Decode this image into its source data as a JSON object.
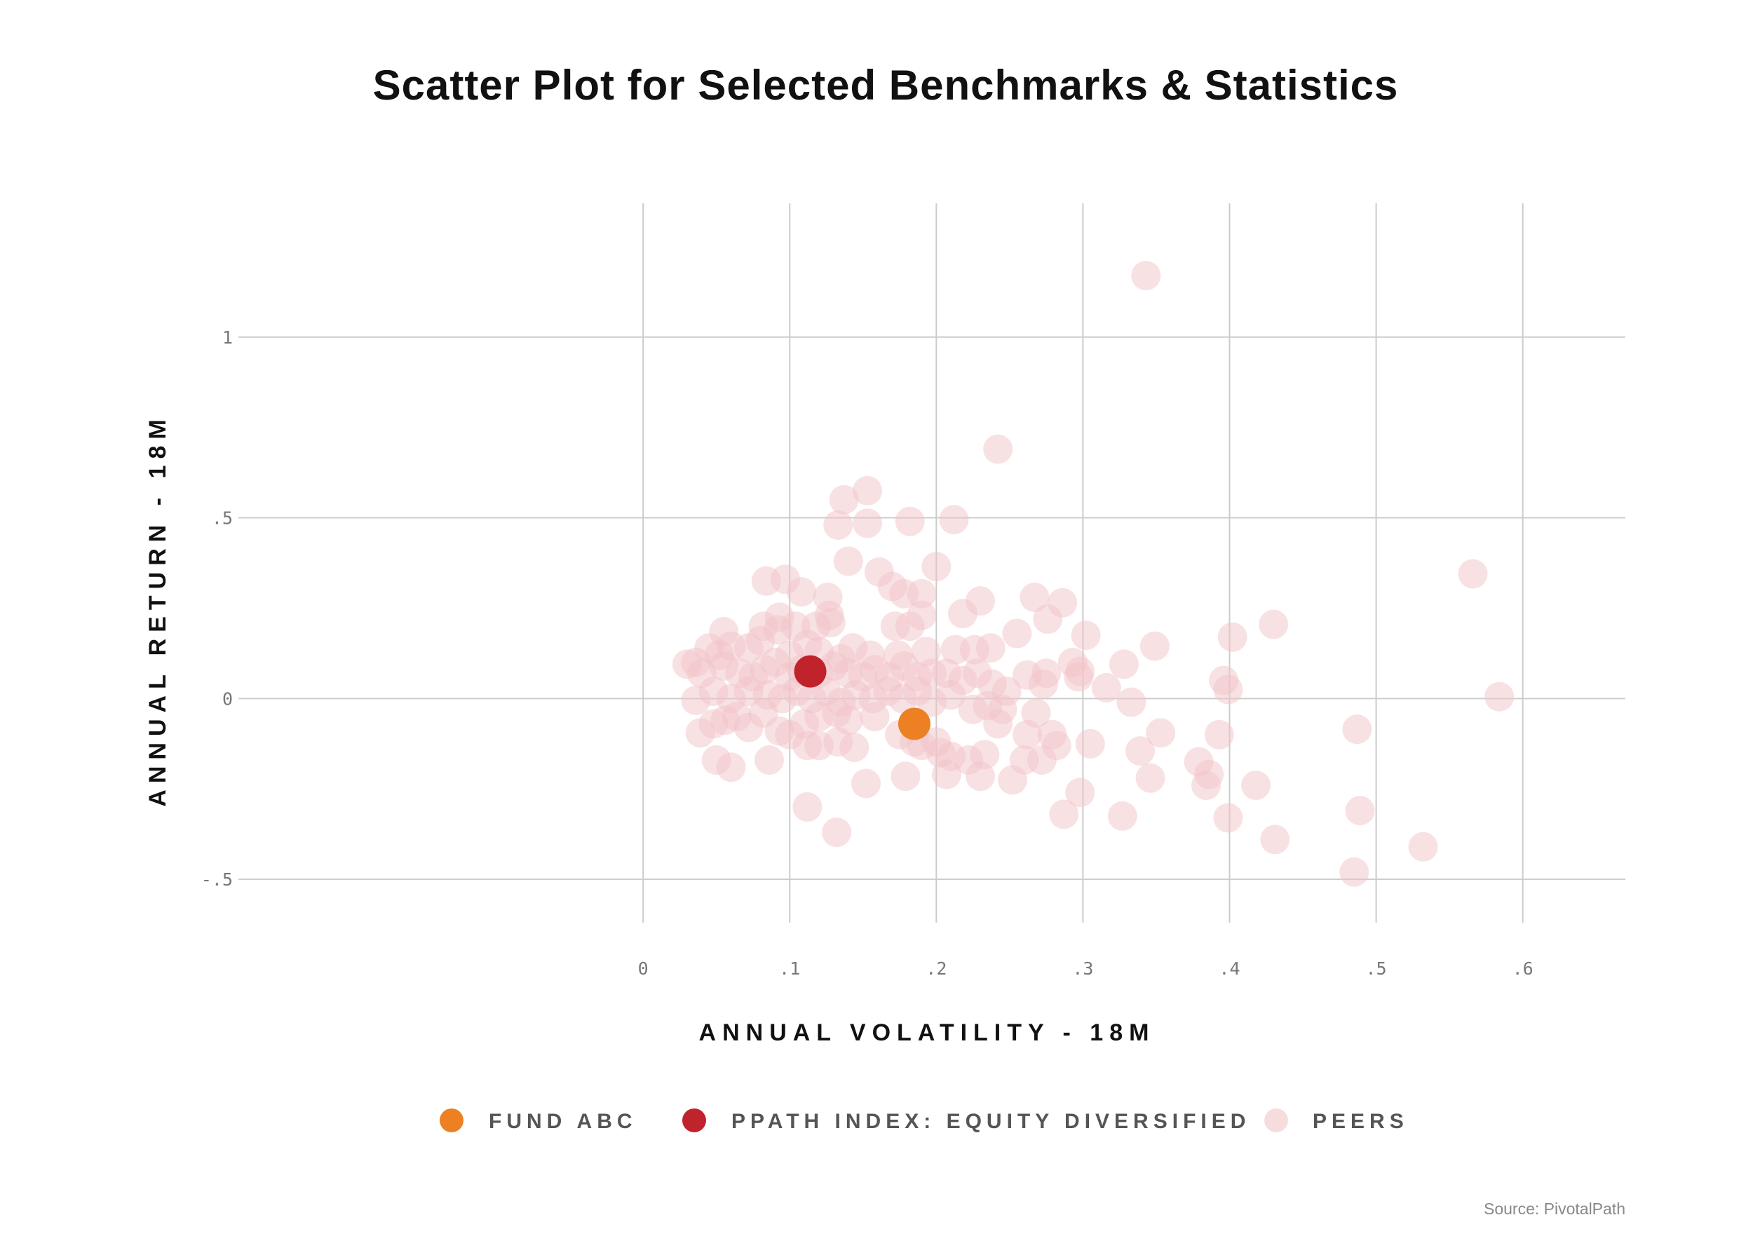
{
  "chart_data": {
    "type": "scatter",
    "title": "Scatter Plot for Selected Benchmarks & Statistics",
    "xlabel": "ANNUAL VOLATILITY - 18M",
    "ylabel": "ANNUAL RETURN - 18M",
    "xlim": [
      -0.2,
      0.67
    ],
    "ylim": [
      -0.62,
      1.37
    ],
    "grid": true,
    "legend_position": "bottom",
    "x_ticks": [
      {
        "value": 0,
        "label": "0"
      },
      {
        "value": 0.1,
        "label": ".1"
      },
      {
        "value": 0.2,
        "label": ".2"
      },
      {
        "value": 0.3,
        "label": ".3"
      },
      {
        "value": 0.4,
        "label": ".4"
      },
      {
        "value": 0.5,
        "label": ".5"
      },
      {
        "value": 0.6,
        "label": ".6"
      }
    ],
    "y_ticks": [
      {
        "value": 1,
        "label": "1"
      },
      {
        "value": 0.5,
        "label": ".5"
      },
      {
        "value": 0,
        "label": "0"
      },
      {
        "value": -0.5,
        "label": "-.5"
      }
    ],
    "source": "Source: PivotalPath",
    "series": [
      {
        "name": "PEERS",
        "color": "#f2c4c8",
        "opacity": 0.5,
        "points": [
          {
            "x": 0.343,
            "y": 1.17
          },
          {
            "x": 0.242,
            "y": 0.69
          },
          {
            "x": 0.153,
            "y": 0.575
          },
          {
            "x": 0.137,
            "y": 0.55
          },
          {
            "x": 0.133,
            "y": 0.48
          },
          {
            "x": 0.153,
            "y": 0.485
          },
          {
            "x": 0.182,
            "y": 0.49
          },
          {
            "x": 0.212,
            "y": 0.495
          },
          {
            "x": 0.2,
            "y": 0.365
          },
          {
            "x": 0.14,
            "y": 0.38
          },
          {
            "x": 0.161,
            "y": 0.35
          },
          {
            "x": 0.17,
            "y": 0.31
          },
          {
            "x": 0.178,
            "y": 0.29
          },
          {
            "x": 0.19,
            "y": 0.29
          },
          {
            "x": 0.084,
            "y": 0.325
          },
          {
            "x": 0.097,
            "y": 0.33
          },
          {
            "x": 0.108,
            "y": 0.295
          },
          {
            "x": 0.126,
            "y": 0.28
          },
          {
            "x": 0.127,
            "y": 0.23
          },
          {
            "x": 0.182,
            "y": 0.2
          },
          {
            "x": 0.19,
            "y": 0.23
          },
          {
            "x": 0.172,
            "y": 0.2
          },
          {
            "x": 0.218,
            "y": 0.235
          },
          {
            "x": 0.23,
            "y": 0.27
          },
          {
            "x": 0.267,
            "y": 0.28
          },
          {
            "x": 0.286,
            "y": 0.265
          },
          {
            "x": 0.276,
            "y": 0.22
          },
          {
            "x": 0.255,
            "y": 0.18
          },
          {
            "x": 0.302,
            "y": 0.175
          },
          {
            "x": 0.237,
            "y": 0.14
          },
          {
            "x": 0.226,
            "y": 0.135
          },
          {
            "x": 0.213,
            "y": 0.135
          },
          {
            "x": 0.193,
            "y": 0.13
          },
          {
            "x": 0.174,
            "y": 0.12
          },
          {
            "x": 0.155,
            "y": 0.12
          },
          {
            "x": 0.143,
            "y": 0.14
          },
          {
            "x": 0.135,
            "y": 0.11
          },
          {
            "x": 0.12,
            "y": 0.13
          },
          {
            "x": 0.112,
            "y": 0.15
          },
          {
            "x": 0.1,
            "y": 0.12
          },
          {
            "x": 0.092,
            "y": 0.19
          },
          {
            "x": 0.104,
            "y": 0.2
          },
          {
            "x": 0.118,
            "y": 0.2
          },
          {
            "x": 0.128,
            "y": 0.21
          },
          {
            "x": 0.082,
            "y": 0.2
          },
          {
            "x": 0.093,
            "y": 0.225
          },
          {
            "x": 0.055,
            "y": 0.185
          },
          {
            "x": 0.06,
            "y": 0.145
          },
          {
            "x": 0.072,
            "y": 0.14
          },
          {
            "x": 0.08,
            "y": 0.16
          },
          {
            "x": 0.045,
            "y": 0.14
          },
          {
            "x": 0.052,
            "y": 0.12
          },
          {
            "x": 0.03,
            "y": 0.095
          },
          {
            "x": 0.036,
            "y": 0.1
          },
          {
            "x": 0.04,
            "y": 0.07
          },
          {
            "x": 0.055,
            "y": 0.09
          },
          {
            "x": 0.066,
            "y": 0.07
          },
          {
            "x": 0.075,
            "y": 0.06
          },
          {
            "x": 0.083,
            "y": 0.08
          },
          {
            "x": 0.09,
            "y": 0.1
          },
          {
            "x": 0.1,
            "y": 0.06
          },
          {
            "x": 0.108,
            "y": 0.08
          },
          {
            "x": 0.12,
            "y": 0.07
          },
          {
            "x": 0.13,
            "y": 0.09
          },
          {
            "x": 0.14,
            "y": 0.07
          },
          {
            "x": 0.15,
            "y": 0.06
          },
          {
            "x": 0.158,
            "y": 0.08
          },
          {
            "x": 0.168,
            "y": 0.06
          },
          {
            "x": 0.178,
            "y": 0.09
          },
          {
            "x": 0.187,
            "y": 0.06
          },
          {
            "x": 0.197,
            "y": 0.07
          },
          {
            "x": 0.207,
            "y": 0.07
          },
          {
            "x": 0.218,
            "y": 0.05
          },
          {
            "x": 0.228,
            "y": 0.07
          },
          {
            "x": 0.238,
            "y": 0.04
          },
          {
            "x": 0.248,
            "y": 0.02
          },
          {
            "x": 0.262,
            "y": 0.065
          },
          {
            "x": 0.275,
            "y": 0.07
          },
          {
            "x": 0.273,
            "y": 0.04
          },
          {
            "x": 0.293,
            "y": 0.1
          },
          {
            "x": 0.298,
            "y": 0.075
          },
          {
            "x": 0.297,
            "y": 0.06
          },
          {
            "x": 0.316,
            "y": 0.03
          },
          {
            "x": 0.328,
            "y": 0.095
          },
          {
            "x": 0.333,
            "y": -0.01
          },
          {
            "x": 0.349,
            "y": 0.145
          },
          {
            "x": 0.036,
            "y": -0.005
          },
          {
            "x": 0.048,
            "y": 0.02
          },
          {
            "x": 0.06,
            "y": 0.0
          },
          {
            "x": 0.072,
            "y": 0.02
          },
          {
            "x": 0.085,
            "y": 0.01
          },
          {
            "x": 0.095,
            "y": 0.0
          },
          {
            "x": 0.105,
            "y": 0.02
          },
          {
            "x": 0.115,
            "y": 0.0
          },
          {
            "x": 0.125,
            "y": 0.02
          },
          {
            "x": 0.135,
            "y": -0.01
          },
          {
            "x": 0.145,
            "y": 0.01
          },
          {
            "x": 0.157,
            "y": 0.0
          },
          {
            "x": 0.167,
            "y": 0.02
          },
          {
            "x": 0.177,
            "y": 0.0
          },
          {
            "x": 0.187,
            "y": 0.02
          },
          {
            "x": 0.197,
            "y": -0.01
          },
          {
            "x": 0.21,
            "y": 0.01
          },
          {
            "x": 0.235,
            "y": -0.02
          },
          {
            "x": 0.245,
            "y": -0.03
          },
          {
            "x": 0.268,
            "y": -0.04
          },
          {
            "x": 0.039,
            "y": -0.095
          },
          {
            "x": 0.048,
            "y": -0.07
          },
          {
            "x": 0.056,
            "y": -0.06
          },
          {
            "x": 0.064,
            "y": -0.05
          },
          {
            "x": 0.072,
            "y": -0.08
          },
          {
            "x": 0.082,
            "y": -0.04
          },
          {
            "x": 0.093,
            "y": -0.09
          },
          {
            "x": 0.1,
            "y": -0.1
          },
          {
            "x": 0.11,
            "y": -0.07
          },
          {
            "x": 0.12,
            "y": -0.05
          },
          {
            "x": 0.132,
            "y": -0.04
          },
          {
            "x": 0.14,
            "y": -0.06
          },
          {
            "x": 0.158,
            "y": -0.05
          },
          {
            "x": 0.175,
            "y": -0.1
          },
          {
            "x": 0.185,
            "y": -0.12
          },
          {
            "x": 0.19,
            "y": -0.13
          },
          {
            "x": 0.2,
            "y": -0.12
          },
          {
            "x": 0.203,
            "y": -0.15
          },
          {
            "x": 0.225,
            "y": -0.03
          },
          {
            "x": 0.242,
            "y": -0.07
          },
          {
            "x": 0.262,
            "y": -0.1
          },
          {
            "x": 0.279,
            "y": -0.1
          },
          {
            "x": 0.282,
            "y": -0.13
          },
          {
            "x": 0.305,
            "y": -0.125
          },
          {
            "x": 0.339,
            "y": -0.145
          },
          {
            "x": 0.353,
            "y": -0.095
          },
          {
            "x": 0.05,
            "y": -0.17
          },
          {
            "x": 0.06,
            "y": -0.19
          },
          {
            "x": 0.086,
            "y": -0.17
          },
          {
            "x": 0.112,
            "y": -0.13
          },
          {
            "x": 0.12,
            "y": -0.13
          },
          {
            "x": 0.133,
            "y": -0.12
          },
          {
            "x": 0.144,
            "y": -0.135
          },
          {
            "x": 0.21,
            "y": -0.16
          },
          {
            "x": 0.222,
            "y": -0.17
          },
          {
            "x": 0.233,
            "y": -0.155
          },
          {
            "x": 0.26,
            "y": -0.17
          },
          {
            "x": 0.272,
            "y": -0.17
          },
          {
            "x": 0.179,
            "y": -0.215
          },
          {
            "x": 0.207,
            "y": -0.21
          },
          {
            "x": 0.23,
            "y": -0.215
          },
          {
            "x": 0.252,
            "y": -0.225
          },
          {
            "x": 0.152,
            "y": -0.235
          },
          {
            "x": 0.112,
            "y": -0.3
          },
          {
            "x": 0.132,
            "y": -0.37
          },
          {
            "x": 0.287,
            "y": -0.32
          },
          {
            "x": 0.298,
            "y": -0.26
          },
          {
            "x": 0.327,
            "y": -0.325
          },
          {
            "x": 0.346,
            "y": -0.22
          },
          {
            "x": 0.379,
            "y": -0.175
          },
          {
            "x": 0.384,
            "y": -0.24
          },
          {
            "x": 0.386,
            "y": -0.21
          },
          {
            "x": 0.393,
            "y": -0.1
          },
          {
            "x": 0.396,
            "y": 0.05
          },
          {
            "x": 0.399,
            "y": 0.025
          },
          {
            "x": 0.402,
            "y": 0.17
          },
          {
            "x": 0.399,
            "y": -0.33
          },
          {
            "x": 0.418,
            "y": -0.24
          },
          {
            "x": 0.43,
            "y": 0.205
          },
          {
            "x": 0.431,
            "y": -0.39
          },
          {
            "x": 0.485,
            "y": -0.48
          },
          {
            "x": 0.487,
            "y": -0.085
          },
          {
            "x": 0.489,
            "y": -0.31
          },
          {
            "x": 0.532,
            "y": -0.41
          },
          {
            "x": 0.566,
            "y": 0.345
          },
          {
            "x": 0.584,
            "y": 0.005
          }
        ]
      },
      {
        "name": "FUND ABC",
        "color": "#ed8022",
        "opacity": 1,
        "points": [
          {
            "x": 0.185,
            "y": -0.07
          }
        ]
      },
      {
        "name": "PPATH INDEX: EQUITY DIVERSIFIED",
        "color": "#c0232c",
        "opacity": 1,
        "points": [
          {
            "x": 0.114,
            "y": 0.075
          }
        ]
      }
    ],
    "legend": [
      {
        "label": "FUND ABC",
        "color": "#ed8022",
        "opacity": 1
      },
      {
        "label": "PPATH INDEX: EQUITY DIVERSIFIED",
        "color": "#c0232c",
        "opacity": 1
      },
      {
        "label": "PEERS",
        "color": "#f2c4c8",
        "opacity": 0.6
      }
    ]
  }
}
